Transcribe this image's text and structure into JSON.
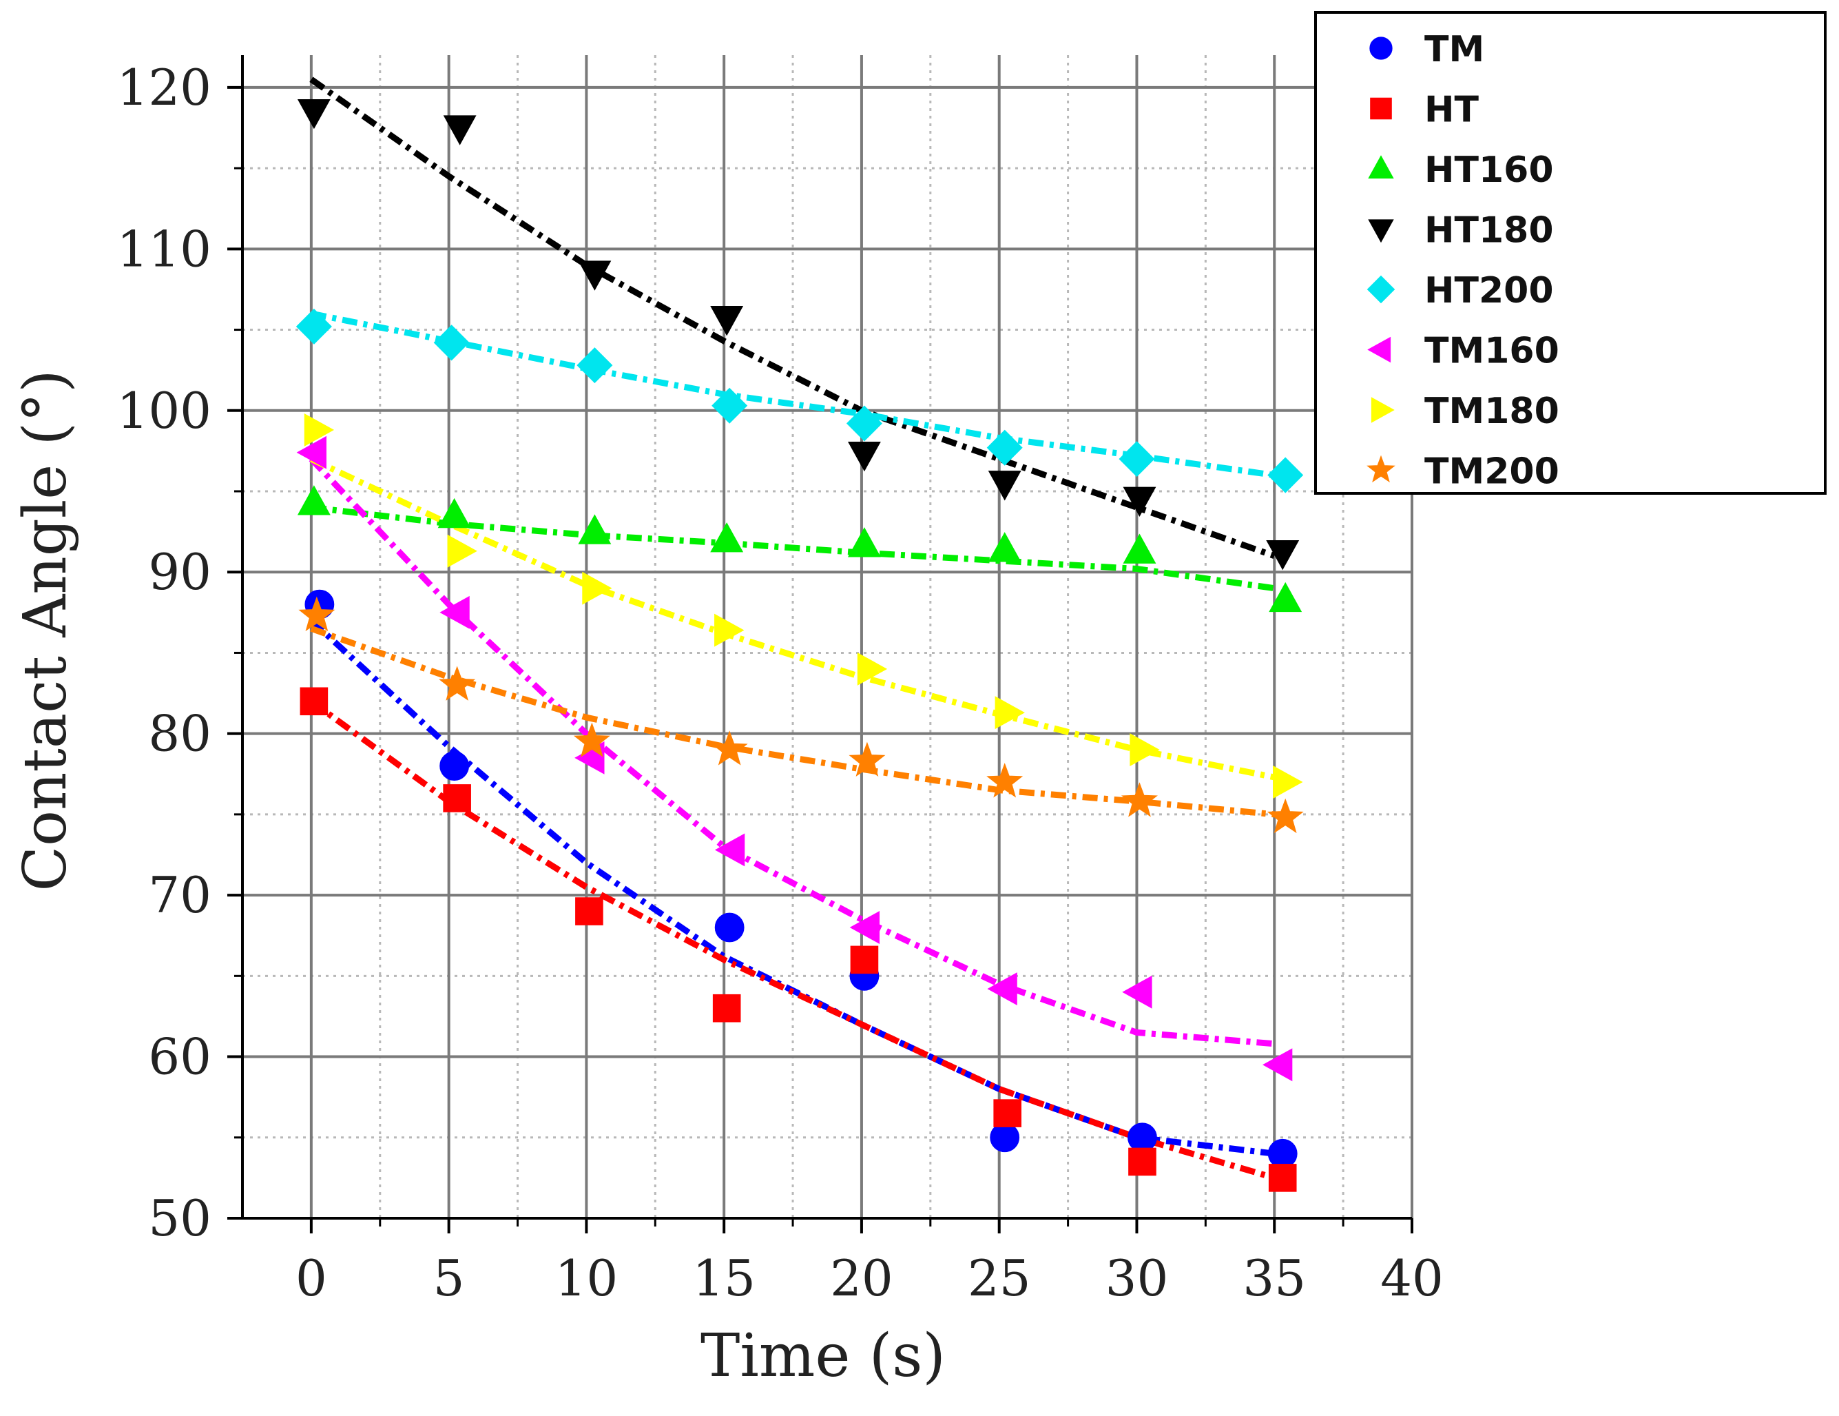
{
  "chart_data": {
    "type": "scatter",
    "title": "",
    "xlabel": "Time (s)",
    "ylabel": "Contact Angle (°)",
    "xlim": [
      -2.5,
      40
    ],
    "ylim": [
      50,
      122
    ],
    "xticks": [
      0,
      5,
      10,
      15,
      20,
      25,
      30,
      35,
      40
    ],
    "yticks": [
      50,
      60,
      70,
      80,
      90,
      100,
      110,
      120
    ],
    "xtick_labels": [
      "0",
      "5",
      "10",
      "15",
      "20",
      "25",
      "30",
      "35",
      "40"
    ],
    "ytick_labels": [
      "50",
      "60",
      "70",
      "80",
      "90",
      "100",
      "110",
      "120"
    ],
    "grid": true,
    "legend_position": "top-right",
    "series": [
      {
        "name": "TM",
        "color": "#0000ff",
        "marker": "circle",
        "x": [
          0.3,
          5.2,
          15.2,
          20.1,
          25.2,
          30.2,
          35.3
        ],
        "y": [
          88.0,
          78.0,
          68.0,
          65.0,
          55.0,
          55.0,
          54.0
        ],
        "fit_x": [
          0,
          5,
          10,
          15,
          20,
          25,
          30,
          35
        ],
        "fit_y": [
          87.0,
          79.2,
          72.0,
          66.2,
          62.0,
          58.0,
          55.0,
          54.0
        ]
      },
      {
        "name": "HT",
        "color": "#ff0000",
        "marker": "square",
        "x": [
          0.1,
          5.3,
          10.1,
          15.1,
          20.1,
          25.3,
          30.2,
          35.3
        ],
        "y": [
          82.0,
          76.0,
          69.0,
          63.0,
          66.0,
          56.5,
          53.5,
          52.5
        ],
        "fit_x": [
          0,
          5,
          10,
          15,
          20,
          25,
          30,
          35
        ],
        "fit_y": [
          82.0,
          75.8,
          70.5,
          66.0,
          62.0,
          58.0,
          55.0,
          52.5
        ]
      },
      {
        "name": "HT160",
        "color": "#00ee00",
        "marker": "triangle-up",
        "x": [
          0.1,
          5.2,
          10.3,
          15.1,
          20.1,
          25.2,
          30.1,
          35.4
        ],
        "y": [
          94.3,
          93.5,
          92.5,
          92.0,
          91.7,
          91.4,
          91.3,
          88.3
        ],
        "fit_x": [
          0,
          5,
          10,
          15,
          20,
          25,
          30,
          35
        ],
        "fit_y": [
          94.0,
          93.0,
          92.3,
          91.8,
          91.2,
          90.7,
          90.2,
          89.0
        ]
      },
      {
        "name": "HT180",
        "color": "#000000",
        "marker": "triangle-down",
        "x": [
          0.1,
          5.4,
          10.3,
          15.1,
          20.1,
          25.2,
          30.1,
          35.3
        ],
        "y": [
          118.5,
          117.5,
          108.5,
          105.7,
          97.3,
          95.5,
          94.5,
          91.2
        ],
        "fit_x": [
          0,
          5,
          10,
          15,
          20,
          25,
          30,
          35
        ],
        "fit_y": [
          120.5,
          114.5,
          109.0,
          104.3,
          100.0,
          97.0,
          94.0,
          91.0
        ]
      },
      {
        "name": "HT200",
        "color": "#00e5ee",
        "marker": "diamond",
        "x": [
          0.1,
          5.1,
          10.3,
          15.2,
          20.1,
          25.2,
          30.0,
          35.4
        ],
        "y": [
          105.2,
          104.2,
          102.8,
          100.3,
          99.2,
          97.7,
          97.0,
          96.0
        ],
        "fit_x": [
          0,
          5,
          10,
          15,
          20,
          25,
          30,
          35
        ],
        "fit_y": [
          106.0,
          104.3,
          102.6,
          101.0,
          99.8,
          98.3,
          97.2,
          96.0
        ]
      },
      {
        "name": "TM160",
        "color": "#ff00ff",
        "marker": "triangle-left",
        "x": [
          0.1,
          5.3,
          10.2,
          15.3,
          20.2,
          25.2,
          30.1,
          35.2
        ],
        "y": [
          97.4,
          87.5,
          78.5,
          72.8,
          68.0,
          64.2,
          64.0,
          59.5
        ],
        "fit_x": [
          0,
          5,
          10,
          15,
          20,
          25,
          30,
          35
        ],
        "fit_y": [
          97.0,
          88.0,
          80.0,
          73.0,
          68.5,
          64.5,
          61.5,
          60.8
        ]
      },
      {
        "name": "TM180",
        "color": "#ffff00",
        "marker": "triangle-right",
        "x": [
          0.2,
          5.4,
          10.3,
          15.1,
          20.3,
          25.3,
          30.2,
          35.4
        ],
        "y": [
          98.8,
          91.3,
          89.0,
          86.4,
          84.0,
          81.3,
          79.0,
          77.0
        ],
        "fit_x": [
          0,
          5,
          10,
          15,
          20,
          25,
          30,
          35
        ],
        "fit_y": [
          97.0,
          93.0,
          89.2,
          86.2,
          83.5,
          81.2,
          79.0,
          77.3
        ]
      },
      {
        "name": "TM200",
        "color": "#ff8000",
        "marker": "star",
        "x": [
          0.2,
          5.3,
          10.2,
          15.2,
          20.2,
          25.2,
          30.1,
          35.4
        ],
        "y": [
          87.3,
          83.0,
          79.5,
          79.0,
          78.3,
          77.0,
          75.8,
          74.8
        ],
        "fit_x": [
          0,
          5,
          10,
          15,
          20,
          25,
          30,
          35
        ],
        "fit_y": [
          86.5,
          83.5,
          81.0,
          79.2,
          77.8,
          76.5,
          75.8,
          75.0
        ]
      }
    ]
  }
}
